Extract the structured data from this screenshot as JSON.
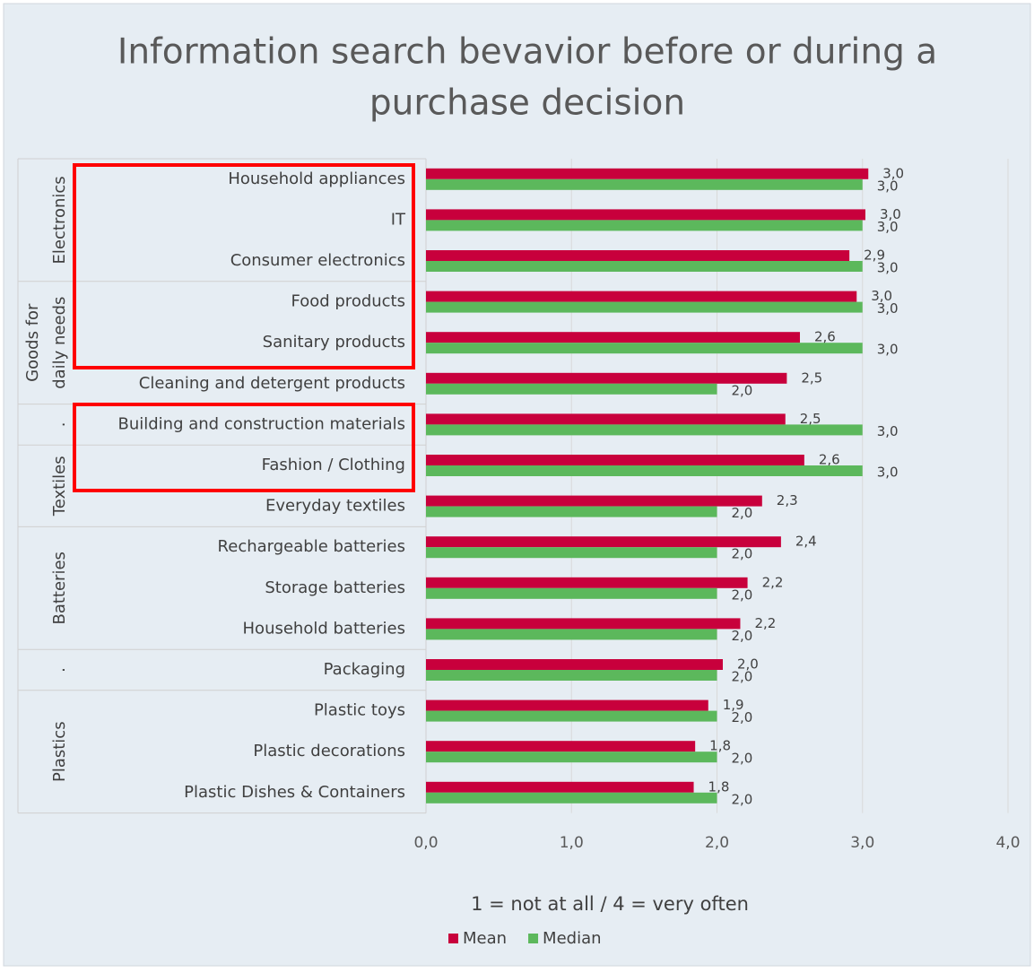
{
  "chart_data": {
    "type": "bar",
    "orientation": "horizontal",
    "title_lines": [
      "Information search bevavior before or during a",
      "purchase decision"
    ],
    "x_axis_label": "1 = not at all / 4 = very often",
    "categories": [
      "Household appliances",
      "IT",
      "Consumer electronics",
      "Food products",
      "Sanitary products",
      "Cleaning and detergent products",
      "Building and construction materials",
      "Fashion / Clothing",
      "Everyday textiles",
      "Rechargeable batteries",
      "Storage batteries",
      "Household batteries",
      "Packaging",
      "Plastic toys",
      "Plastic decorations",
      "Plastic Dishes & Containers"
    ],
    "groups": [
      {
        "lines": [
          "Electronics"
        ],
        "size": 3
      },
      {
        "lines": [
          "Goods for",
          "daily needs"
        ],
        "size": 3
      },
      {
        "lines": [
          "."
        ],
        "size": 1
      },
      {
        "lines": [
          "Textiles"
        ],
        "size": 2
      },
      {
        "lines": [
          "Batteries"
        ],
        "size": 3
      },
      {
        "lines": [
          "."
        ],
        "size": 1
      },
      {
        "lines": [
          "Plastics"
        ],
        "size": 3
      }
    ],
    "series": [
      {
        "name": "Mean",
        "color": "#c8003c",
        "values": [
          3.04,
          3.02,
          2.91,
          2.96,
          2.57,
          2.48,
          2.47,
          2.6,
          2.31,
          2.44,
          2.21,
          2.16,
          2.04,
          1.94,
          1.85,
          1.84
        ],
        "value_labels": [
          "3,0",
          "3,0",
          "2,9",
          "3,0",
          "2,6",
          "2,5",
          "2,5",
          "2,6",
          "2,3",
          "2,4",
          "2,2",
          "2,2",
          "2,0",
          "1,9",
          "1,8",
          "1,8"
        ]
      },
      {
        "name": "Median",
        "color": "#5cb85c",
        "values": [
          3,
          3,
          3,
          3,
          3,
          2,
          3,
          3,
          2,
          2,
          2,
          2,
          2,
          2,
          2,
          2
        ],
        "value_labels": [
          "3,0",
          "3,0",
          "3,0",
          "3,0",
          "3,0",
          "2,0",
          "3,0",
          "3,0",
          "2,0",
          "2,0",
          "2,0",
          "2,0",
          "2,0",
          "2,0",
          "2,0",
          "2,0"
        ]
      }
    ],
    "xlim": [
      0,
      4
    ],
    "xticks": [
      {
        "value": 0,
        "label": "0,0"
      },
      {
        "value": 1,
        "label": "1,0"
      },
      {
        "value": 2,
        "label": "2,0"
      },
      {
        "value": 3,
        "label": "3,0"
      },
      {
        "value": 4,
        "label": "4,0"
      }
    ],
    "grid": true,
    "legend": "bottom"
  }
}
